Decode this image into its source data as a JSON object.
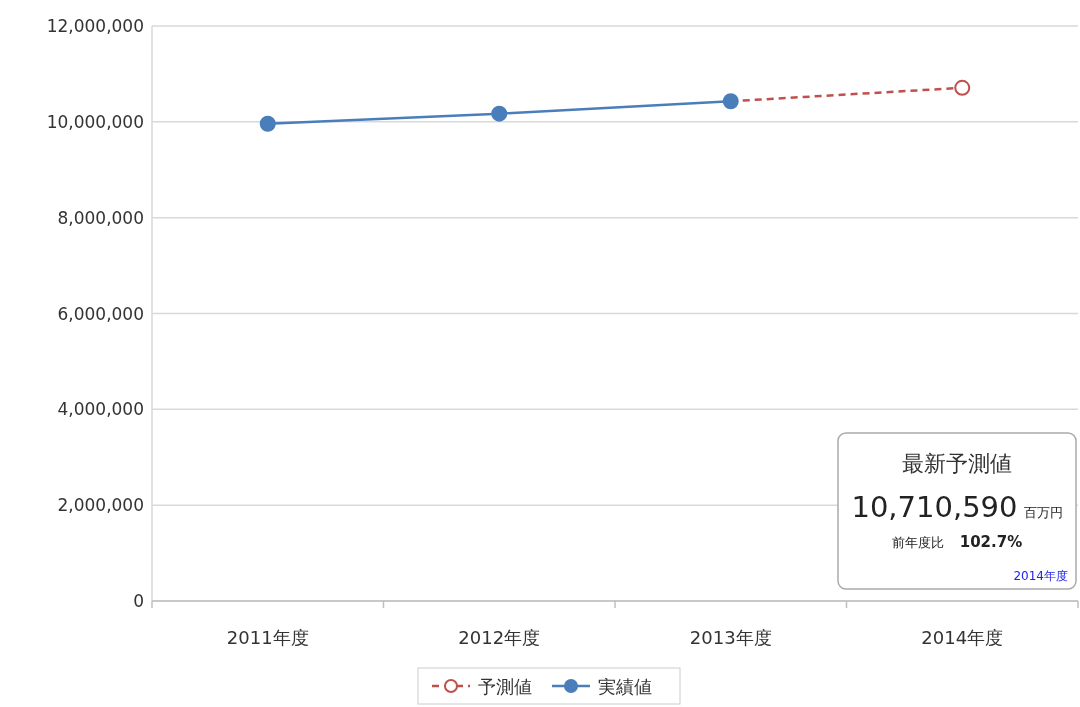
{
  "chart_data": {
    "type": "line",
    "categories": [
      "2011年度",
      "2012年度",
      "2013年度",
      "2014年度"
    ],
    "series": [
      {
        "name": "予測値",
        "color": "#c0504d",
        "values": [
          null,
          null,
          10430000,
          10710590
        ],
        "line_style": "dashed",
        "marker": "circle"
      },
      {
        "name": "実績値",
        "color": "#4a7ebb",
        "values": [
          9960000,
          10170000,
          10430000,
          null
        ],
        "line_style": "solid",
        "marker": "circle"
      }
    ],
    "ylim": [
      0,
      12000000
    ],
    "yticks": [
      {
        "value": 0,
        "label": "0"
      },
      {
        "value": 2000000,
        "label": "2,000,000"
      },
      {
        "value": 4000000,
        "label": "4,000,000"
      },
      {
        "value": 6000000,
        "label": "6,000,000"
      },
      {
        "value": 8000000,
        "label": "8,000,000"
      },
      {
        "value": 10000000,
        "label": "10,000,000"
      },
      {
        "value": 12000000,
        "label": "12,000,000"
      }
    ],
    "grid": "y",
    "legend": "bottom",
    "annotations": [
      "最新予測値",
      "10,710,590",
      "百万円",
      "前年度比",
      "102.7%",
      "2014年度"
    ]
  }
}
